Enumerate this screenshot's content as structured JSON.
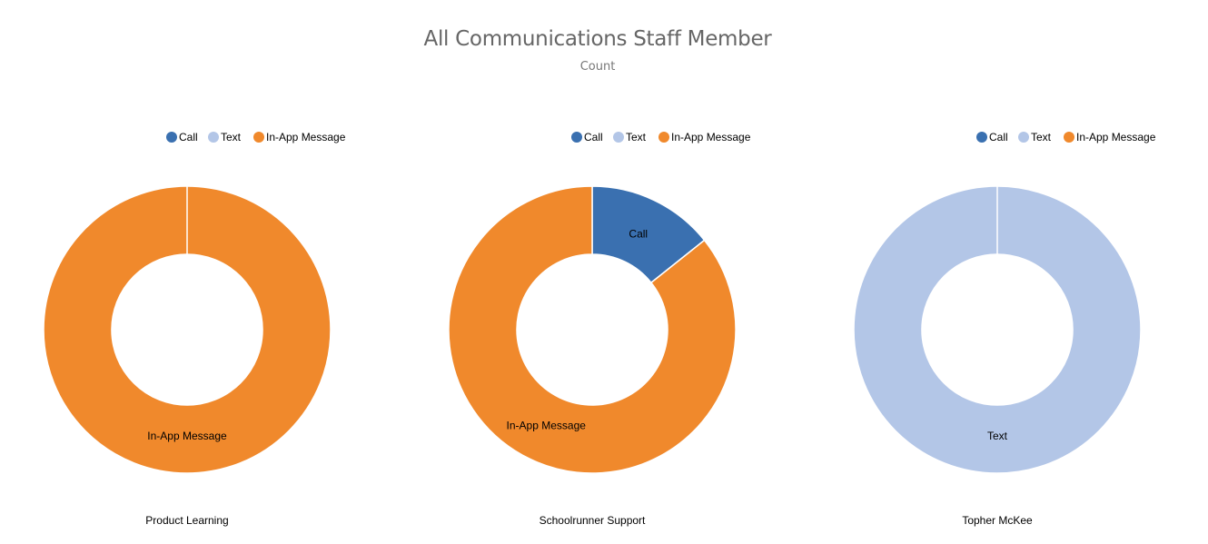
{
  "chart_data": {
    "type": "pie",
    "title": "All Communications Staff Member",
    "subtitle": "Count",
    "legend_entries": [
      "Call",
      "Text",
      "In-App Message"
    ],
    "colors": {
      "Call": "#3a70b0",
      "Text": "#b3c6e7",
      "In-App Message": "#f0892c"
    },
    "legend_placement": "top",
    "charts": [
      {
        "name": "Product Learning",
        "slices": [
          {
            "label": "In-App Message",
            "value": 1
          }
        ]
      },
      {
        "name": "Schoolrunner Support",
        "slices": [
          {
            "label": "Call",
            "value": 1
          },
          {
            "label": "In-App Message",
            "value": 6
          }
        ]
      },
      {
        "name": "Topher McKee",
        "slices": [
          {
            "label": "Text",
            "value": 1
          }
        ]
      }
    ]
  }
}
